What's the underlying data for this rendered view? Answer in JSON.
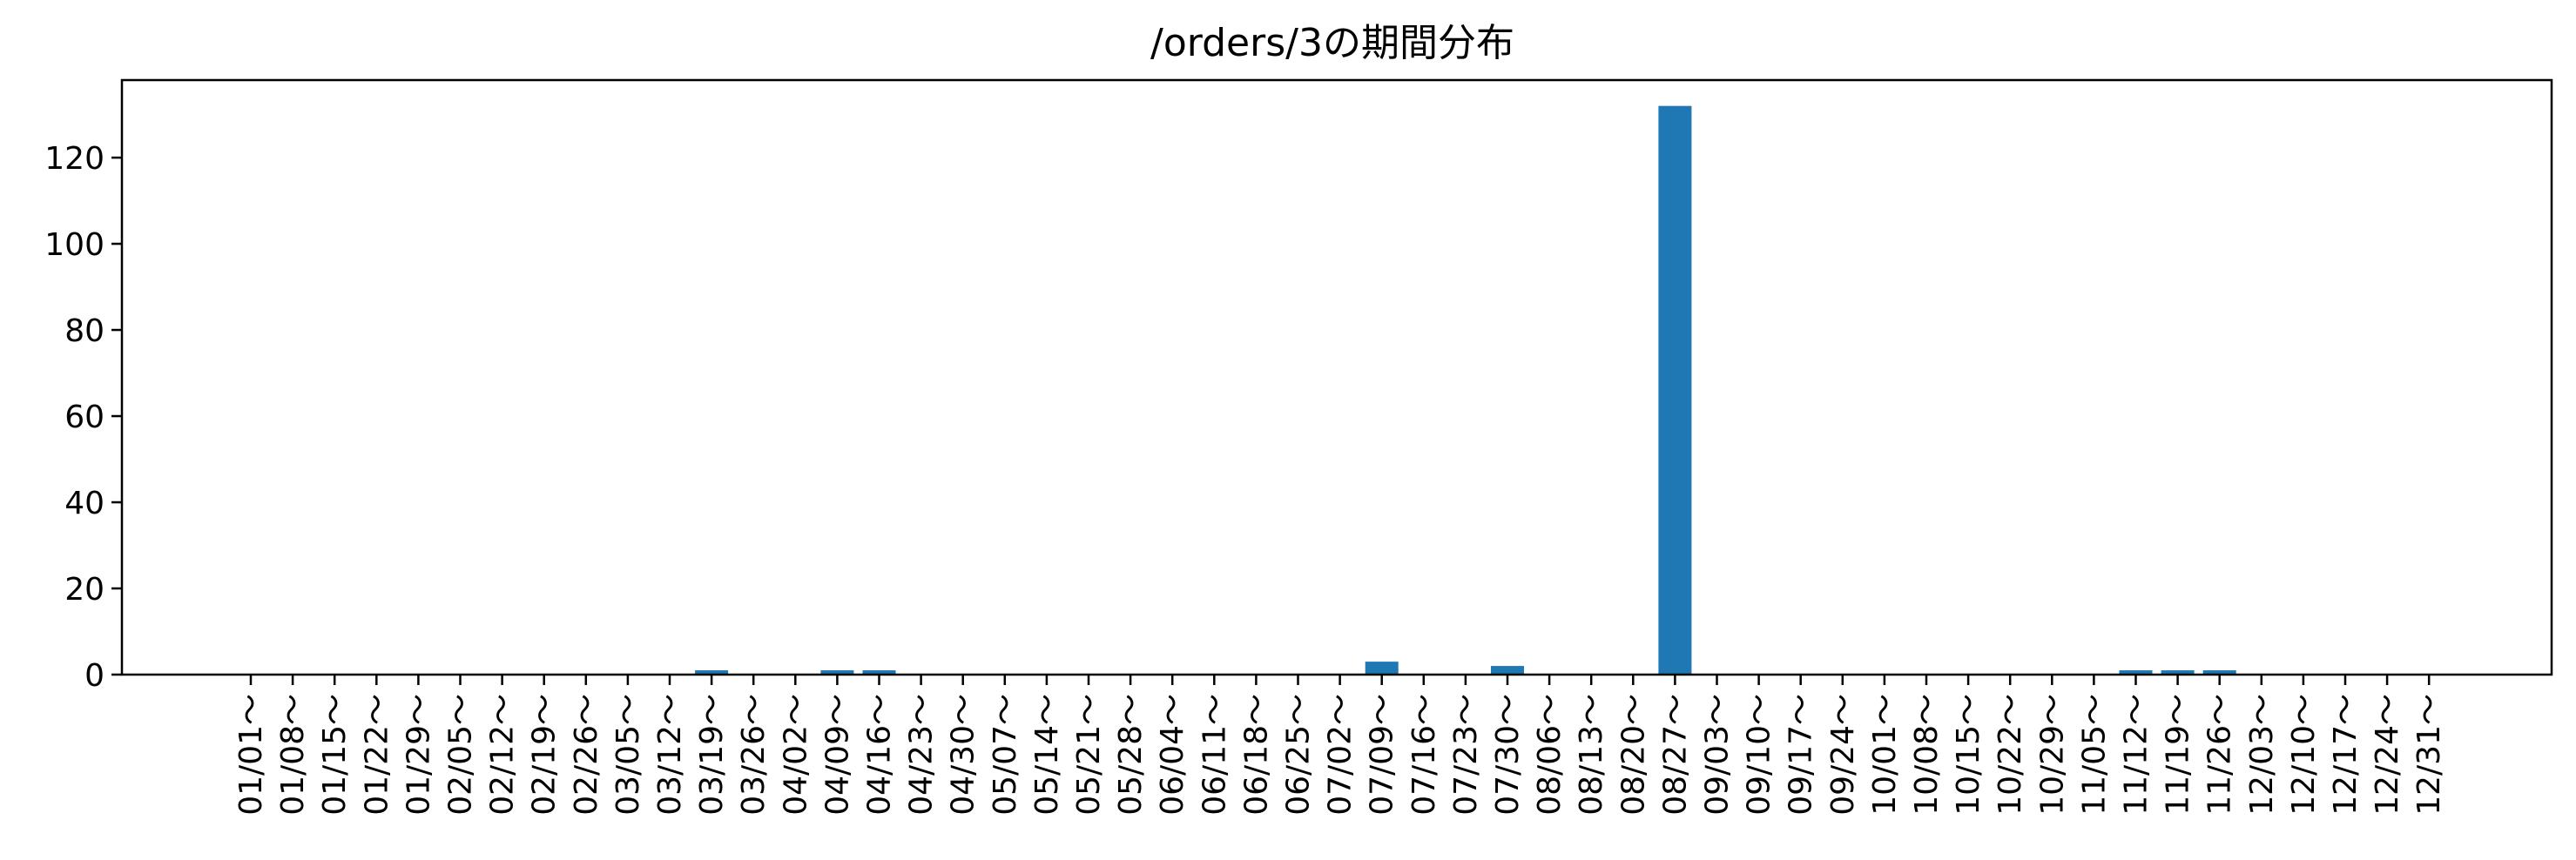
{
  "chart_data": {
    "type": "bar",
    "title": "/orders/3の期間分布",
    "xlabel": "",
    "ylabel": "",
    "ylim": [
      0,
      138
    ],
    "yticks": [
      0,
      20,
      40,
      60,
      80,
      100,
      120
    ],
    "grid": false,
    "color": "#1f77b4",
    "categories": [
      "01/01～",
      "01/08～",
      "01/15～",
      "01/22～",
      "01/29～",
      "02/05～",
      "02/12～",
      "02/19～",
      "02/26～",
      "03/05～",
      "03/12～",
      "03/19～",
      "03/26～",
      "04/02～",
      "04/09～",
      "04/16～",
      "04/23～",
      "04/30～",
      "05/07～",
      "05/14～",
      "05/21～",
      "05/28～",
      "06/04～",
      "06/11～",
      "06/18～",
      "06/25～",
      "07/02～",
      "07/09～",
      "07/16～",
      "07/23～",
      "07/30～",
      "08/06～",
      "08/13～",
      "08/20～",
      "08/27～",
      "09/03～",
      "09/10～",
      "09/17～",
      "09/24～",
      "10/01～",
      "10/08～",
      "10/15～",
      "10/22～",
      "10/29～",
      "11/05～",
      "11/12～",
      "11/19～",
      "11/26～",
      "12/03～",
      "12/10～",
      "12/17～",
      "12/24～",
      "12/31～"
    ],
    "values": [
      0,
      0,
      0,
      0,
      0,
      0,
      0,
      0,
      0,
      0,
      0,
      1,
      0,
      0,
      1,
      1,
      0,
      0,
      0,
      0,
      0,
      0,
      0,
      0,
      0,
      0,
      0,
      3,
      0,
      0,
      2,
      0,
      0,
      0,
      132,
      0,
      0,
      0,
      0,
      0,
      0,
      0,
      0,
      0,
      0,
      1,
      1,
      1,
      0,
      0,
      0,
      0,
      0
    ]
  }
}
